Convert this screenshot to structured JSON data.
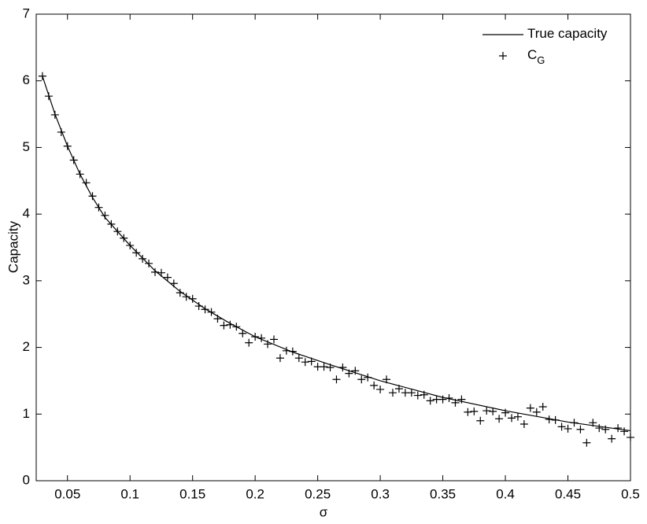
{
  "chart_data": {
    "type": "line-scatter",
    "xlabel": "σ",
    "ylabel": "Capacity",
    "xlim": [
      0.025,
      0.5
    ],
    "ylim": [
      0,
      7
    ],
    "xticks": [
      0.05,
      0.1,
      0.15,
      0.2,
      0.25,
      0.3,
      0.35,
      0.4,
      0.45,
      0.5
    ],
    "yticks": [
      0,
      1,
      2,
      3,
      4,
      5,
      6,
      7
    ],
    "legend": "top-right",
    "series": [
      {
        "name": "True capacity",
        "kind": "line",
        "color": "#000000",
        "x": [
          0.03,
          0.04,
          0.05,
          0.06,
          0.07,
          0.08,
          0.1,
          0.12,
          0.14,
          0.16,
          0.18,
          0.2,
          0.23,
          0.26,
          0.3,
          0.35,
          0.4,
          0.45,
          0.5
        ],
        "values": [
          6.07,
          5.5,
          5.02,
          4.6,
          4.25,
          3.95,
          3.53,
          3.15,
          2.84,
          2.58,
          2.36,
          2.16,
          1.93,
          1.74,
          1.5,
          1.25,
          1.05,
          0.88,
          0.75
        ]
      },
      {
        "name": "C_G",
        "kind": "scatter",
        "color": "#000000",
        "x": [
          0.03,
          0.035,
          0.04,
          0.045,
          0.05,
          0.055,
          0.06,
          0.065,
          0.07,
          0.075,
          0.08,
          0.085,
          0.09,
          0.095,
          0.1,
          0.105,
          0.11,
          0.115,
          0.12,
          0.125,
          0.13,
          0.135,
          0.14,
          0.145,
          0.15,
          0.155,
          0.16,
          0.165,
          0.17,
          0.175,
          0.18,
          0.185,
          0.19,
          0.195,
          0.2,
          0.205,
          0.21,
          0.215,
          0.22,
          0.225,
          0.23,
          0.235,
          0.24,
          0.245,
          0.25,
          0.255,
          0.26,
          0.265,
          0.27,
          0.275,
          0.28,
          0.285,
          0.29,
          0.295,
          0.3,
          0.305,
          0.31,
          0.315,
          0.32,
          0.325,
          0.33,
          0.335,
          0.34,
          0.345,
          0.35,
          0.355,
          0.36,
          0.365,
          0.37,
          0.375,
          0.38,
          0.385,
          0.39,
          0.395,
          0.4,
          0.405,
          0.41,
          0.415,
          0.42,
          0.425,
          0.43,
          0.435,
          0.44,
          0.445,
          0.45,
          0.455,
          0.46,
          0.465,
          0.47,
          0.475,
          0.48,
          0.485,
          0.49,
          0.495,
          0.5
        ],
        "values": [
          6.07,
          5.77,
          5.49,
          5.23,
          5.02,
          4.81,
          4.6,
          4.47,
          4.27,
          4.1,
          3.98,
          3.85,
          3.74,
          3.64,
          3.53,
          3.42,
          3.33,
          3.26,
          3.13,
          3.12,
          3.05,
          2.96,
          2.82,
          2.76,
          2.73,
          2.62,
          2.57,
          2.53,
          2.43,
          2.33,
          2.34,
          2.31,
          2.21,
          2.07,
          2.16,
          2.14,
          2.05,
          2.12,
          1.84,
          1.95,
          1.94,
          1.84,
          1.78,
          1.79,
          1.71,
          1.71,
          1.7,
          1.52,
          1.7,
          1.61,
          1.65,
          1.52,
          1.55,
          1.43,
          1.37,
          1.52,
          1.32,
          1.38,
          1.32,
          1.32,
          1.28,
          1.29,
          1.2,
          1.22,
          1.22,
          1.24,
          1.17,
          1.22,
          1.03,
          1.04,
          0.9,
          1.05,
          1.04,
          0.93,
          1.02,
          0.94,
          0.96,
          0.85,
          1.09,
          1.03,
          1.11,
          0.92,
          0.91,
          0.81,
          0.78,
          0.87,
          0.77,
          0.57,
          0.87,
          0.79,
          0.77,
          0.63,
          0.79,
          0.74,
          0.65
        ]
      }
    ]
  }
}
